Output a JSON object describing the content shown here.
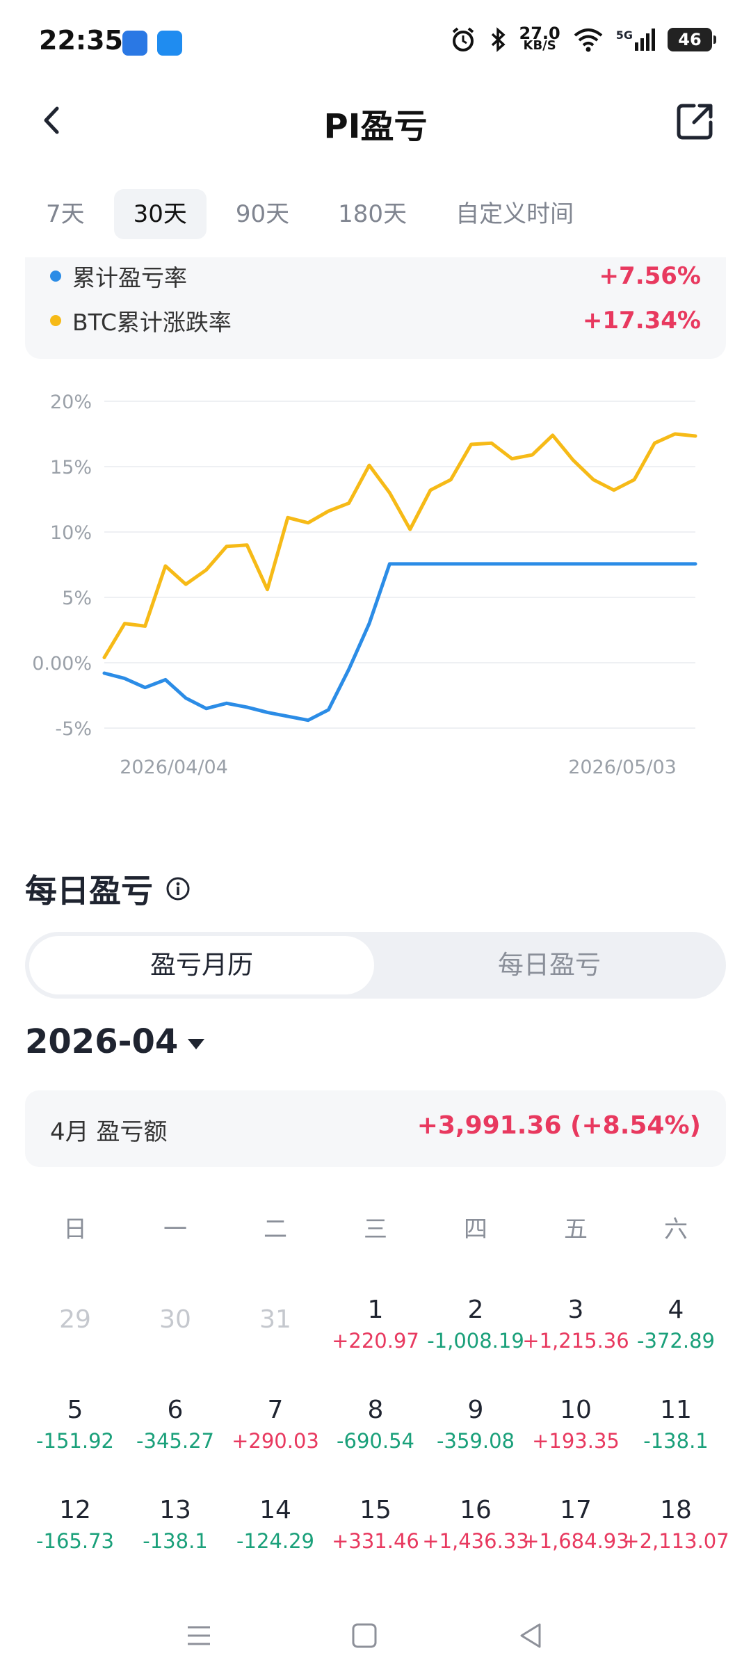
{
  "status": {
    "time": "22:35",
    "net_speed": "27.0",
    "net_unit": "KB/S",
    "signal": "5G",
    "battery": "46"
  },
  "header": {
    "title": "PI盈亏"
  },
  "tabs": [
    "7天",
    "30天",
    "90天",
    "180天",
    "自定义时间"
  ],
  "active_tab": 1,
  "summary": {
    "rows": [
      {
        "label": "累计盈亏率",
        "value": "+7.56%",
        "color": "#2b8ce6"
      },
      {
        "label": "BTC累计涨跌率",
        "value": "+17.34%",
        "color": "#f6ba17"
      }
    ]
  },
  "chart_data": {
    "type": "line",
    "y_ticks": [
      "20%",
      "15%",
      "10%",
      "5%",
      "0.00%",
      "-5%"
    ],
    "ylim": [
      -5,
      20
    ],
    "x_labels": [
      "2026/04/04",
      "2026/05/03"
    ],
    "series": [
      {
        "name": "累计盈亏率",
        "color": "#2b8ce6",
        "values": [
          -0.8,
          -1.2,
          -1.9,
          -1.3,
          -2.7,
          -3.5,
          -3.1,
          -3.4,
          -3.8,
          -4.1,
          -4.4,
          -3.6,
          -0.5,
          3.0,
          7.56,
          7.56,
          7.56,
          7.56,
          7.56,
          7.56,
          7.56,
          7.56,
          7.56,
          7.56,
          7.56,
          7.56,
          7.56,
          7.56,
          7.56,
          7.56
        ]
      },
      {
        "name": "BTC累计涨跌率",
        "color": "#f6ba17",
        "values": [
          0.4,
          3.0,
          2.8,
          7.4,
          6.0,
          7.1,
          8.9,
          9.0,
          5.6,
          11.1,
          10.7,
          11.6,
          12.2,
          15.1,
          13.0,
          10.2,
          13.2,
          14.0,
          16.7,
          16.8,
          15.6,
          15.9,
          17.4,
          15.5,
          14.0,
          13.2,
          14.0,
          16.8,
          17.5,
          17.34
        ]
      }
    ]
  },
  "daily": {
    "title": "每日盈亏",
    "seg": [
      "盈亏月历",
      "每日盈亏"
    ],
    "month": "2026-04",
    "month_label": "4月 盈亏额",
    "month_amount": "+3,991.36 (+8.54%)",
    "weekdays": [
      "日",
      "一",
      "二",
      "三",
      "四",
      "五",
      "六"
    ],
    "weeks": [
      [
        {
          "d": "29",
          "dim": true
        },
        {
          "d": "30",
          "dim": true
        },
        {
          "d": "31",
          "dim": true
        },
        {
          "d": "1",
          "v": "+220.97"
        },
        {
          "d": "2",
          "v": "-1,008.19"
        },
        {
          "d": "3",
          "v": "+1,215.36"
        },
        {
          "d": "4",
          "v": "-372.89"
        }
      ],
      [
        {
          "d": "5",
          "v": "-151.92"
        },
        {
          "d": "6",
          "v": "-345.27"
        },
        {
          "d": "7",
          "v": "+290.03"
        },
        {
          "d": "8",
          "v": "-690.54"
        },
        {
          "d": "9",
          "v": "-359.08"
        },
        {
          "d": "10",
          "v": "+193.35"
        },
        {
          "d": "11",
          "v": "-138.1"
        }
      ],
      [
        {
          "d": "12",
          "v": "-165.73"
        },
        {
          "d": "13",
          "v": "-138.1"
        },
        {
          "d": "14",
          "v": "-124.29"
        },
        {
          "d": "15",
          "v": "+331.46"
        },
        {
          "d": "16",
          "v": "+1,436.33"
        },
        {
          "d": "17",
          "v": "+1,684.93"
        },
        {
          "d": "18",
          "v": "+2,113.07"
        }
      ]
    ]
  },
  "colors": {
    "gain": "#e8395f",
    "loss": "#1aa07a",
    "accent_blue": "#2b8ce6",
    "accent_yellow": "#f6ba17"
  }
}
